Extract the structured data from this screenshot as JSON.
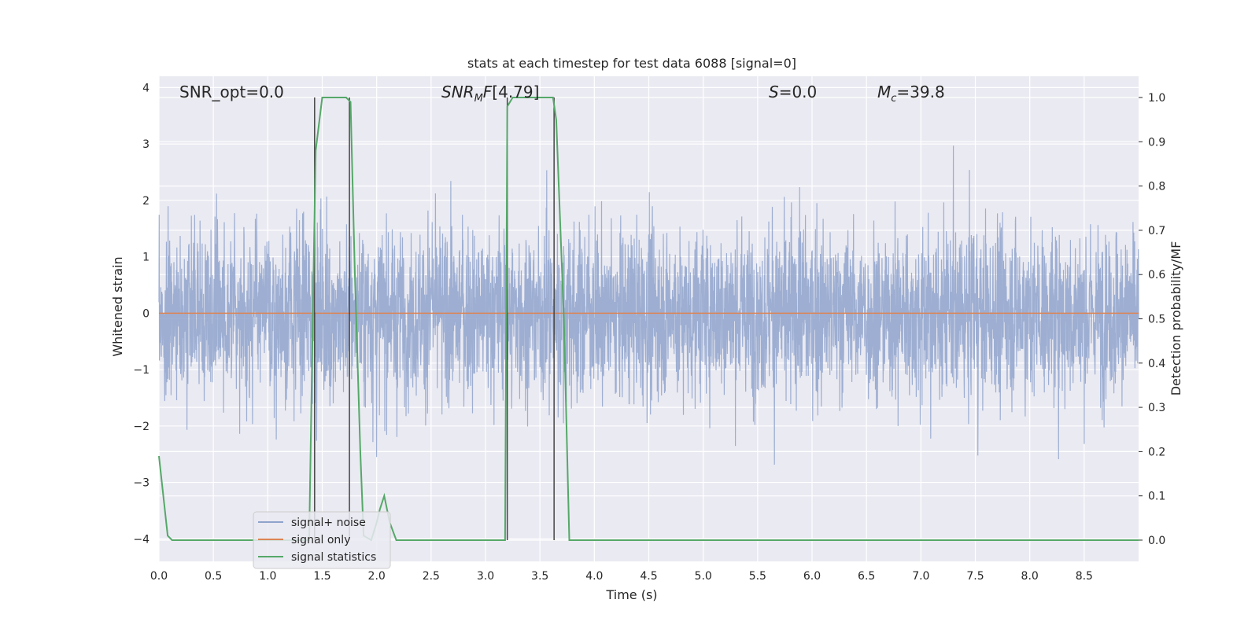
{
  "chart_data": {
    "type": "line",
    "title": "stats at each timestep for test data 6088 [signal=0]",
    "xlabel": "Time (s)",
    "ylabel": "Whitened strain",
    "y2label": "Detection probability/MF",
    "xlim": [
      0.0,
      9.0
    ],
    "ylim": [
      -4.4,
      4.2
    ],
    "y2lim": [
      -0.048,
      1.048
    ],
    "xticks": [
      "0.0",
      "0.5",
      "1.0",
      "1.5",
      "2.0",
      "2.5",
      "3.0",
      "3.5",
      "4.0",
      "4.5",
      "5.0",
      "5.5",
      "6.0",
      "6.5",
      "7.0",
      "7.5",
      "8.0",
      "8.5"
    ],
    "yticks": [
      "−4",
      "−3",
      "−2",
      "−1",
      "0",
      "1",
      "2",
      "3",
      "4"
    ],
    "y2ticks": [
      "0.0",
      "0.1",
      "0.2",
      "0.3",
      "0.4",
      "0.5",
      "0.6",
      "0.7",
      "0.8",
      "0.9",
      "1.0"
    ],
    "grid": true,
    "legend_position": "lower-left",
    "annotations": {
      "snr_opt": "SNR_opt=0.0",
      "snr_mf": "[4.79]",
      "s": "=0.0",
      "mc": "=39.8"
    },
    "series": [
      {
        "name": "signal+ noise",
        "color": "#8fa3cc",
        "summary": "random whitened noise, roughly gaussian with peaks between -4 and 4",
        "envelope_high": 2.6,
        "envelope_low": -2.6
      },
      {
        "name": "signal only",
        "color": "#dd8452",
        "x": [
          0.0,
          9.0
        ],
        "y": [
          0.0,
          0.0
        ]
      },
      {
        "name": "signal statistics",
        "color": "#55a868",
        "axis": "right",
        "x": [
          0.0,
          0.08,
          0.12,
          1.38,
          1.42,
          1.44,
          1.5,
          1.72,
          1.76,
          1.8,
          1.85,
          1.88,
          1.95,
          2.0,
          2.03,
          2.07,
          2.12,
          2.18,
          2.22,
          3.18,
          3.2,
          3.25,
          3.3,
          3.62,
          3.65,
          3.72,
          3.77,
          9.0
        ],
        "y": [
          0.19,
          0.01,
          0.0,
          0.0,
          0.6,
          0.88,
          1.0,
          1.0,
          0.99,
          0.6,
          0.2,
          0.01,
          0.0,
          0.04,
          0.07,
          0.1,
          0.04,
          0.0,
          0.0,
          0.0,
          0.98,
          1.0,
          1.0,
          1.0,
          0.95,
          0.5,
          0.0,
          0.0
        ]
      }
    ],
    "vertical_markers_x": [
      1.43,
      1.75,
      3.2,
      3.63
    ]
  },
  "colors": {
    "plot_background": "#eaeaf2",
    "grid": "#ffffff",
    "noise": "#8fa3cc",
    "signal": "#dd8452",
    "stats": "#55a868",
    "markers": "#444444"
  }
}
